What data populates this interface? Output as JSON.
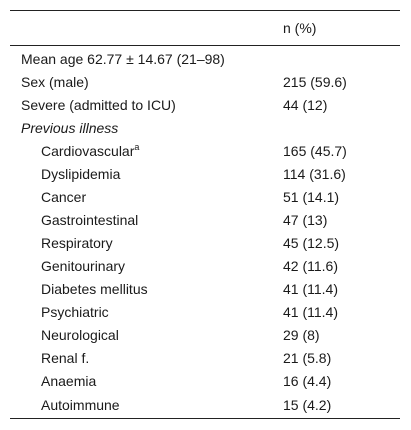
{
  "header": {
    "col1": "",
    "col2": "n (%)"
  },
  "rows": [
    {
      "label": "Mean age 62.77 ± 14.67 (21–98)",
      "value": ""
    },
    {
      "label": "Sex (male)",
      "value": "215 (59.6)"
    },
    {
      "label": "Severe (admitted to ICU)",
      "value": "44 (12)"
    },
    {
      "label": "Previous illness",
      "value": ""
    },
    {
      "label": "Cardiovascular",
      "sup": "a",
      "value": "165 (45.7)"
    },
    {
      "label": "Dyslipidemia",
      "value": "114 (31.6)"
    },
    {
      "label": "Cancer",
      "value": "51 (14.1)"
    },
    {
      "label": "Gastrointestinal",
      "value": "47 (13)"
    },
    {
      "label": "Respiratory",
      "value": "45 (12.5)"
    },
    {
      "label": "Genitourinary",
      "value": "42 (11.6)"
    },
    {
      "label": "Diabetes mellitus",
      "value": "41 (11.4)"
    },
    {
      "label": "Psychiatric",
      "value": "41 (11.4)"
    },
    {
      "label": "Neurological",
      "value": "29 (8)"
    },
    {
      "label": "Renal f.",
      "value": "21 (5.8)"
    },
    {
      "label": "Anaemia",
      "value": "16 (4.4)"
    },
    {
      "label": "Autoimmune",
      "value": "15 (4.2)"
    }
  ]
}
